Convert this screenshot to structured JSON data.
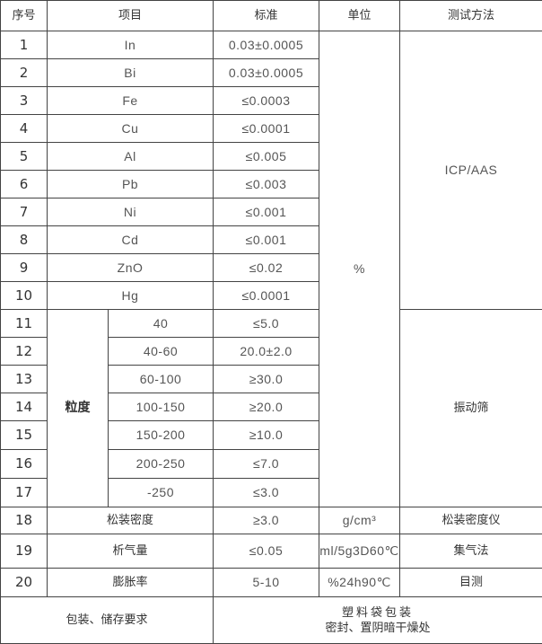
{
  "headers": [
    "序号",
    "项目",
    "标准",
    "单位",
    "测试方法"
  ],
  "rows": [
    {
      "no": "1",
      "item": "In",
      "std": "0.03±0.0005"
    },
    {
      "no": "2",
      "item": "Bi",
      "std": "0.03±0.0005"
    },
    {
      "no": "3",
      "item": "Fe",
      "std": "≤0.0003"
    },
    {
      "no": "4",
      "item": "Cu",
      "std": "≤0.0001"
    },
    {
      "no": "5",
      "item": "Al",
      "std": "≤0.005"
    },
    {
      "no": "6",
      "item": "Pb",
      "std": "≤0.003"
    },
    {
      "no": "7",
      "item": "Ni",
      "std": "≤0.001"
    },
    {
      "no": "8",
      "item": "Cd",
      "std": "≤0.001"
    },
    {
      "no": "9",
      "item": "ZnO",
      "std": "≤0.02"
    },
    {
      "no": "10",
      "item": "Hg",
      "std": "≤0.0001"
    },
    {
      "no": "11",
      "item": "40",
      "std": "≤5.0"
    },
    {
      "no": "12",
      "item": "40-60",
      "std": "20.0±2.0"
    },
    {
      "no": "13",
      "item": "60-100",
      "std": "≥30.0"
    },
    {
      "no": "14",
      "item": "100-150",
      "std": "≥20.0"
    },
    {
      "no": "15",
      "item": "150-200",
      "std": "≥10.0"
    },
    {
      "no": "16",
      "item": "200-250",
      "std": "≤7.0"
    },
    {
      "no": "17",
      "item": "-250",
      "std": "≤3.0"
    },
    {
      "no": "18",
      "item": "松装密度",
      "std": "≥3.0",
      "unit": "g/cm³",
      "method": "松装密度仪"
    },
    {
      "no": "19",
      "item": "析气量",
      "std": "≤0.05",
      "unit": "ml/5g3D60℃",
      "method": "集气法"
    },
    {
      "no": "20",
      "item": "膨胀率",
      "std": "5-10",
      "unit": "%24h90℃",
      "method": "目测"
    }
  ],
  "granularity_label": "粒度",
  "percent_unit": "%",
  "method_icp": "ICP/AAS",
  "method_sieve": "振动筛",
  "packaging": {
    "label": "包装、储存要求",
    "line1": "塑料袋包装",
    "line2": "密封、置阴暗干燥处"
  }
}
